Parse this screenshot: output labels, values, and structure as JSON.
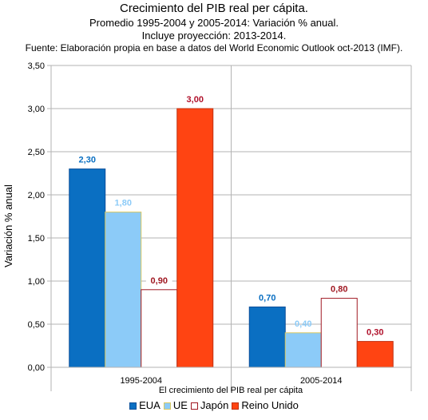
{
  "chart_data": {
    "type": "bar",
    "title": "Crecimiento del PIB real per cápita.",
    "subtitle_lines": [
      "Promedio 1995-2004 y 2005-2014: Variación % anual.",
      "Incluye proyección: 2013-2014.",
      "Fuente: Elaboración propia en base a datos del World Economic Outlook oct-2013 (IMF)."
    ],
    "categories": [
      "1995-2004",
      "2005-2014"
    ],
    "series": [
      {
        "name": "EUA",
        "values": [
          2.3,
          0.7
        ],
        "labels": [
          "2,30",
          "0,70"
        ],
        "color": "#0a6fc2",
        "border": "#0a4f9a",
        "label_color": "#0a6fc2"
      },
      {
        "name": "UE",
        "values": [
          1.8,
          0.4
        ],
        "labels": [
          "1,80",
          "0,40"
        ],
        "color": "#8ccbf8",
        "border": "#d8c860",
        "label_color": "#8ccbf8"
      },
      {
        "name": "Japón",
        "values": [
          0.9,
          0.8
        ],
        "labels": [
          "0,90",
          "0,80"
        ],
        "color": "#ffffff",
        "border": "#a01822",
        "label_color": "#a01822"
      },
      {
        "name": "Reino Unido",
        "values": [
          3.0,
          0.3
        ],
        "labels": [
          "3,00",
          "0,30"
        ],
        "color": "#ff4412",
        "border": "#c03010",
        "label_color": "#b0102a"
      }
    ],
    "xlabel": "El crecimiento del PIB real per cápita",
    "ylabel": "Variación % anual",
    "ylim": [
      0,
      3.5
    ],
    "yticks": [
      0,
      0.5,
      1.0,
      1.5,
      2.0,
      2.5,
      3.0,
      3.5
    ],
    "ytick_labels": [
      "0,00",
      "0,50",
      "1,00",
      "1,50",
      "2,00",
      "2,50",
      "3,00",
      "3,50"
    ],
    "grid": true,
    "legend_position": "bottom"
  }
}
